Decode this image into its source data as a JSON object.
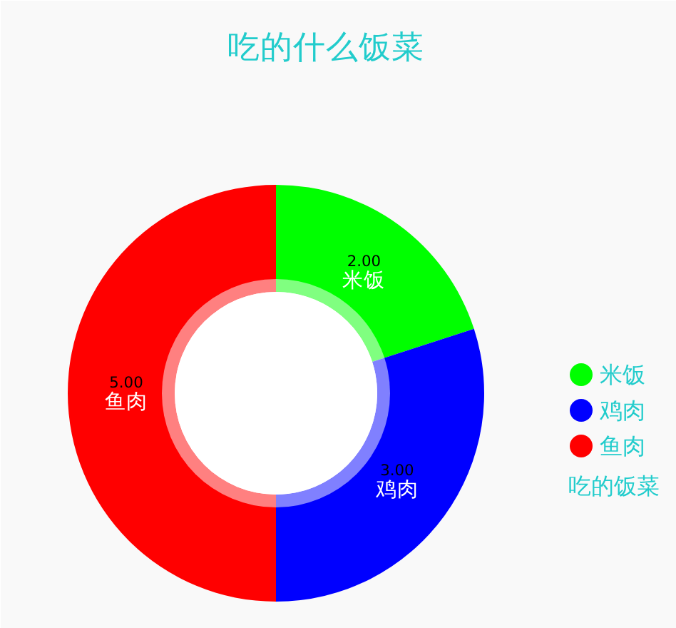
{
  "chart_data": {
    "type": "donut",
    "title": "吃的什么饭菜",
    "categories": [
      "米饭",
      "鸡肉",
      "鱼肉"
    ],
    "values": [
      2,
      3,
      5
    ],
    "colors": [
      "#00ff00",
      "#0000ff",
      "#ff0000"
    ],
    "value_labels": [
      "2.00",
      "3.00",
      "5.00"
    ],
    "legend": "right",
    "legend_title": "吃的饭菜"
  }
}
